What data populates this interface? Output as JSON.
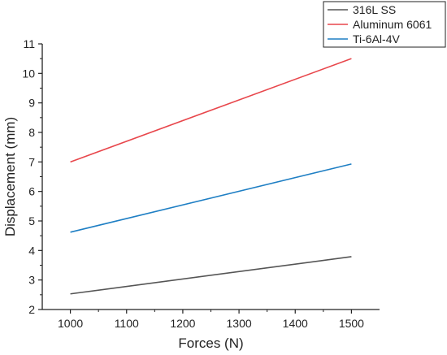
{
  "chart_data": {
    "type": "line",
    "title": "",
    "xlabel": "Forces (N)",
    "ylabel": "Displacement (mm)",
    "xlim": [
      950,
      1550
    ],
    "ylim": [
      2,
      11
    ],
    "x_ticks": [
      1000,
      1100,
      1200,
      1300,
      1400,
      1500
    ],
    "y_ticks": [
      2,
      3,
      4,
      5,
      6,
      7,
      8,
      9,
      10,
      11
    ],
    "grid": false,
    "legend_position": "top-right",
    "series": [
      {
        "name": "316L SS",
        "color": "#555555",
        "x": [
          1000,
          1500
        ],
        "y": [
          2.53,
          3.79
        ]
      },
      {
        "name": "Aluminum 6061",
        "color": "#e8474c",
        "x": [
          1000,
          1500
        ],
        "y": [
          7.0,
          10.5
        ]
      },
      {
        "name": "Ti-6Al-4V",
        "color": "#1f7fc4",
        "x": [
          1000,
          1500
        ],
        "y": [
          4.62,
          6.93
        ]
      }
    ]
  }
}
